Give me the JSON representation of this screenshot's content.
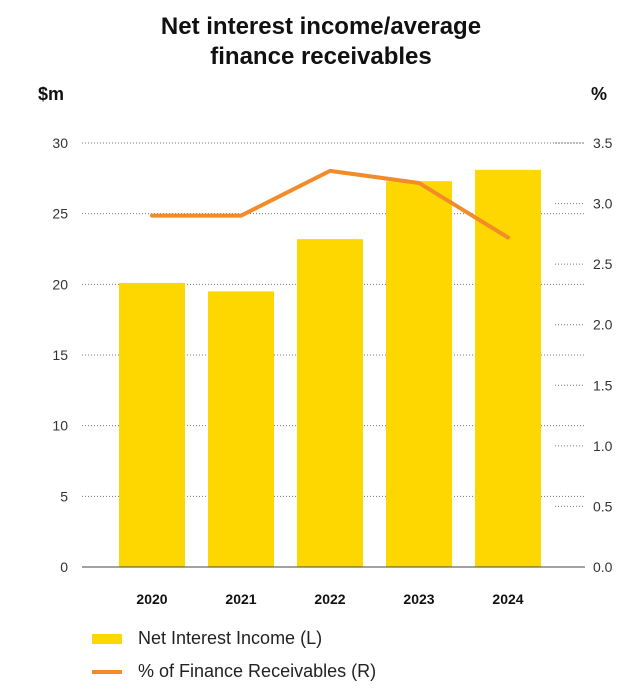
{
  "chart_data": {
    "type": "bar+line",
    "title_lines": [
      "Net interest income/average",
      "finance receivables"
    ],
    "left_axis_unit": "$m",
    "right_axis_unit": "%",
    "categories": [
      "2020",
      "2021",
      "2022",
      "2023",
      "2024"
    ],
    "series": [
      {
        "name": "Net Interest Income (L)",
        "type": "bar",
        "axis": "left",
        "values": [
          20.1,
          19.5,
          23.2,
          27.3,
          28.1
        ],
        "color": "#FFD700"
      },
      {
        "name": "% of Finance Receivables (R)",
        "type": "line",
        "axis": "right",
        "values": [
          2.9,
          2.9,
          3.27,
          3.17,
          2.72
        ],
        "color": "#F28C28"
      }
    ],
    "left_ylim": [
      0,
      30
    ],
    "right_ylim": [
      0,
      3.5
    ],
    "left_ticks": [
      "0",
      "5",
      "10",
      "15",
      "20",
      "25",
      "30"
    ],
    "right_ticks": [
      "0.0",
      "0.5",
      "1.0",
      "1.5",
      "2.0",
      "2.5",
      "3.0",
      "3.5"
    ],
    "grid": true,
    "legend_position": "bottom-left"
  }
}
